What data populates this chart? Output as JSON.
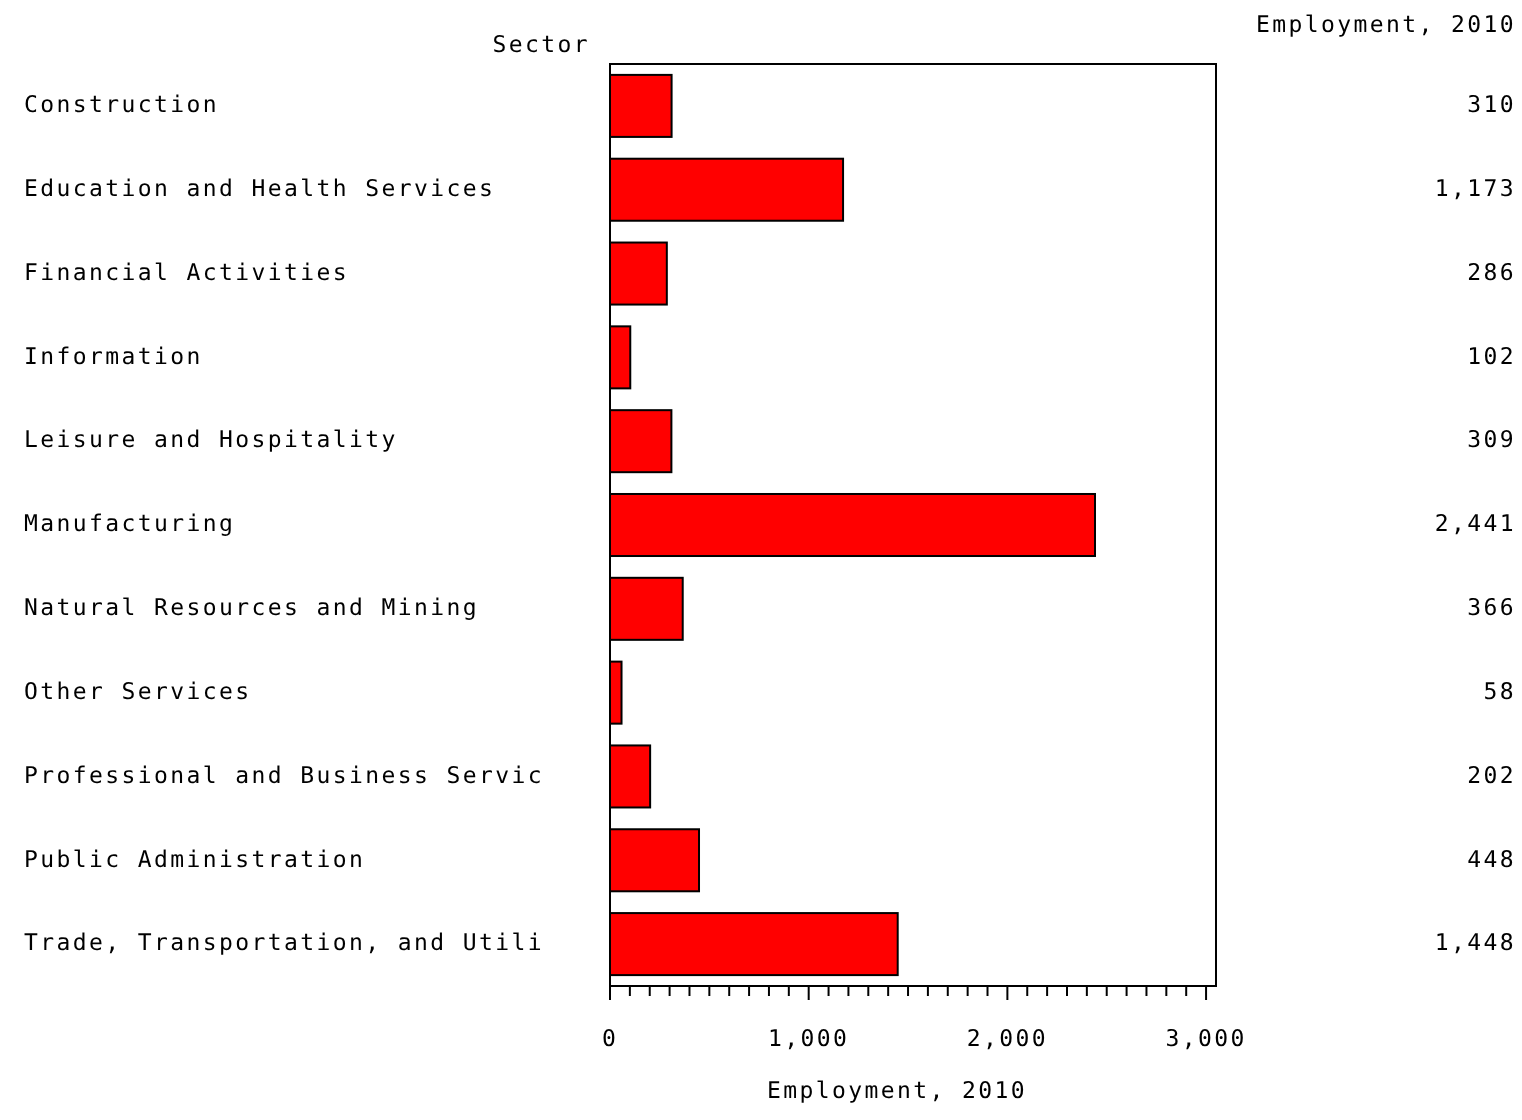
{
  "chart_data": {
    "type": "bar",
    "orientation": "horizontal",
    "ylabel": "Sector",
    "xlabel": "Employment, 2010",
    "categories": [
      "Construction",
      "Education and Health Services",
      "Financial Activities",
      "Information",
      "Leisure and Hospitality",
      "Manufacturing",
      "Natural Resources and Mining",
      "Other Services",
      "Professional and Business Servic",
      "Public Administration",
      "Trade, Transportation, and Utili"
    ],
    "values": [
      310,
      1173,
      286,
      102,
      309,
      2441,
      366,
      58,
      202,
      448,
      1448
    ],
    "value_labels": [
      "310",
      "1,173",
      "286",
      "102",
      "309",
      "2,441",
      "366",
      "58",
      "202",
      "448",
      "1,448"
    ],
    "color": "#ff0000",
    "xlim": [
      0,
      3050
    ],
    "xticks": [
      0,
      {
        "value": 100,
        "label": null
      },
      {
        "value": 200,
        "label": null
      },
      {
        "value": 300,
        "label": null
      },
      {
        "value": 400,
        "label": null
      },
      {
        "value": 500,
        "label": null
      },
      {
        "value": 600,
        "label": null
      },
      {
        "value": 700,
        "label": null
      },
      {
        "value": 800,
        "label": null
      },
      {
        "value": 900,
        "label": null
      },
      {
        "value": 1000,
        "label": "1,000"
      },
      {
        "value": 1100,
        "label": null
      },
      {
        "value": 1200,
        "label": null
      },
      {
        "value": 1300,
        "label": null
      },
      {
        "value": 1400,
        "label": null
      },
      {
        "value": 1500,
        "label": null
      },
      {
        "value": 1600,
        "label": null
      },
      {
        "value": 1700,
        "label": null
      },
      {
        "value": 1800,
        "label": null
      },
      {
        "value": 1900,
        "label": null
      },
      {
        "value": 2000,
        "label": "2,000"
      },
      {
        "value": 2100,
        "label": null
      },
      {
        "value": 2200,
        "label": null
      },
      {
        "value": 2300,
        "label": null
      },
      {
        "value": 2400,
        "label": null
      },
      {
        "value": 2500,
        "label": null
      },
      {
        "value": 2600,
        "label": null
      },
      {
        "value": 2700,
        "label": null
      },
      {
        "value": 2800,
        "label": null
      },
      {
        "value": 2900,
        "label": null
      },
      {
        "value": 3000,
        "label": "3,000"
      }
    ],
    "annotations": [
      "Employment, 2010"
    ],
    "grid": false
  }
}
